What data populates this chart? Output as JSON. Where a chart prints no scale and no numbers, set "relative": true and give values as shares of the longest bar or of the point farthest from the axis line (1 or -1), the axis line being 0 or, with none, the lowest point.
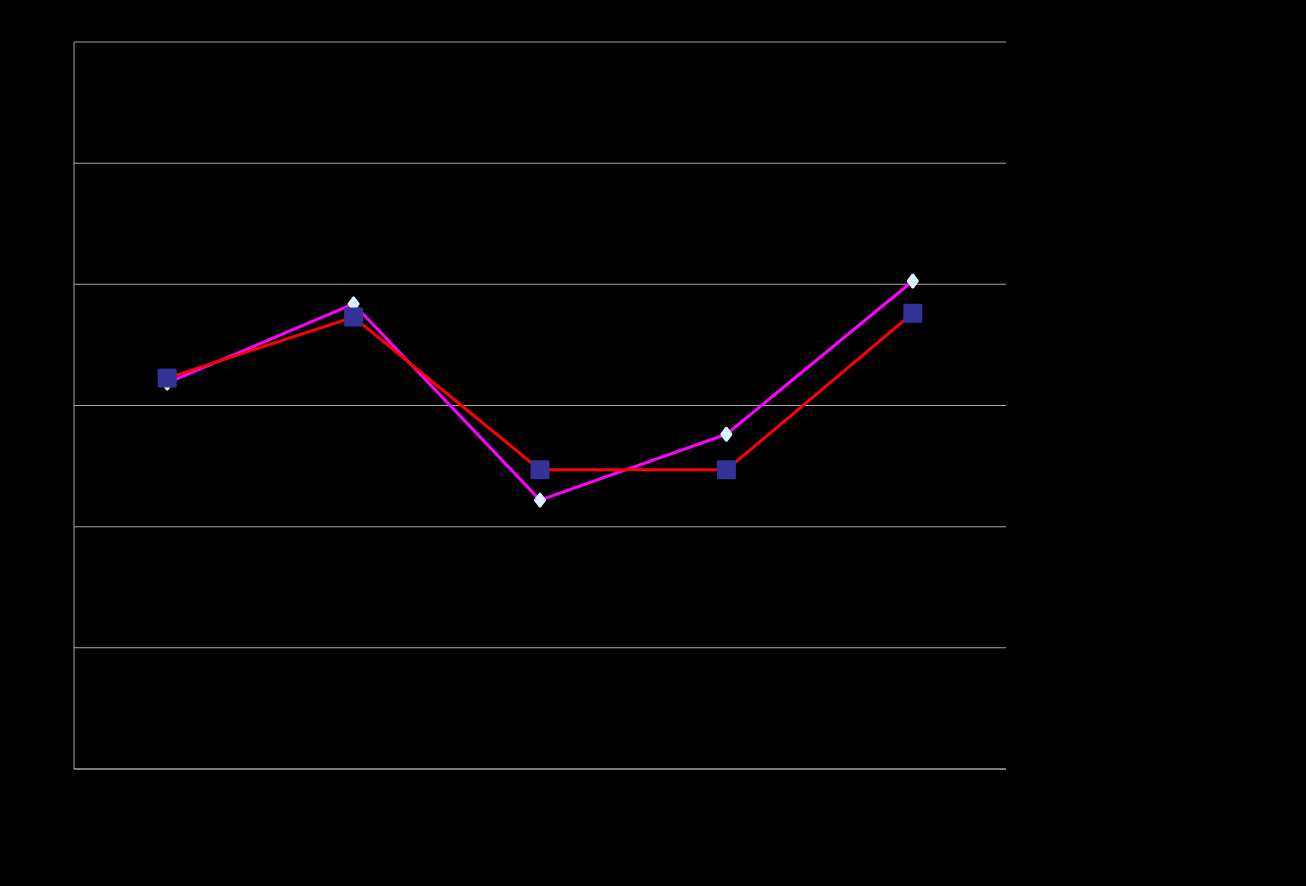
{
  "chart_data": {
    "type": "line",
    "relative": true,
    "categories": [
      null,
      null,
      null,
      null,
      null
    ],
    "series": [
      {
        "color": "#ff00ff",
        "marker": "diamond",
        "values": [
          0.791,
          0.953,
          0.551,
          0.686,
          1
        ]
      },
      {
        "color": "#ff0000",
        "marker": "square",
        "values": [
          0.801,
          0.926,
          0.613,
          0.613,
          0.934
        ]
      }
    ],
    "grid": "y",
    "line_style": "solid"
  }
}
